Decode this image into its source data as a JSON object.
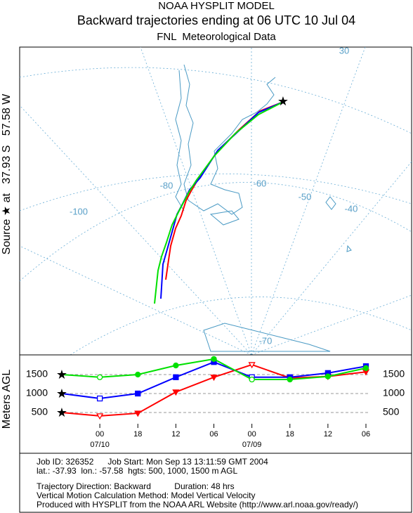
{
  "header": {
    "title": "NOAA HYSPLIT MODEL",
    "subtitle": "Backward trajectories ending at 06 UTC 10 Jul 04",
    "data_source": "FNL  Meteorological Data"
  },
  "source_label": "Source ★ at   37.93 S   57.58 W",
  "map_labels": [
    "30",
    "-80",
    "-60",
    "-50",
    "-100",
    "-40",
    "-70"
  ],
  "chart_data": {
    "type": "line",
    "ylabel": "Meters AGL",
    "categories": [
      null,
      "00",
      "18",
      "12",
      "06",
      "00",
      "18",
      "12",
      "06"
    ],
    "date_labels": [
      "07/10",
      "07/09"
    ],
    "ylim": [
      0,
      2000
    ],
    "yticks": [
      500,
      1000,
      1500
    ],
    "grid": true,
    "series": [
      {
        "name": "500 m",
        "color": "#ff0000",
        "marker": "triangle",
        "values": [
          500,
          410,
          480,
          1040,
          1430,
          1760,
          1410,
          1450,
          1570
        ]
      },
      {
        "name": "1000 m",
        "color": "#0000ff",
        "marker": "square",
        "values": [
          1000,
          870,
          1000,
          1430,
          1830,
          1430,
          1430,
          1540,
          1720
        ]
      },
      {
        "name": "1500 m",
        "color": "#00e000",
        "marker": "circle",
        "values": [
          1500,
          1430,
          1500,
          1740,
          1910,
          1370,
          1370,
          1450,
          1670
        ]
      }
    ]
  },
  "footer": {
    "lines": [
      "Job ID: 326352      Job Start: Mon Sep 13 13:11:59 GMT 2004",
      "lat.: -37.93  lon.: -57.58  hgts: 500, 1000, 1500 m AGL",
      "Trajectory Direction: Backward          Duration: 48 hrs",
      "Vertical Motion Calculation Method: Model Vertical Velocity",
      "Produced with HYSPLIT from the NOAA ARL Website (http://www.arl.noaa.gov/ready/)"
    ]
  }
}
